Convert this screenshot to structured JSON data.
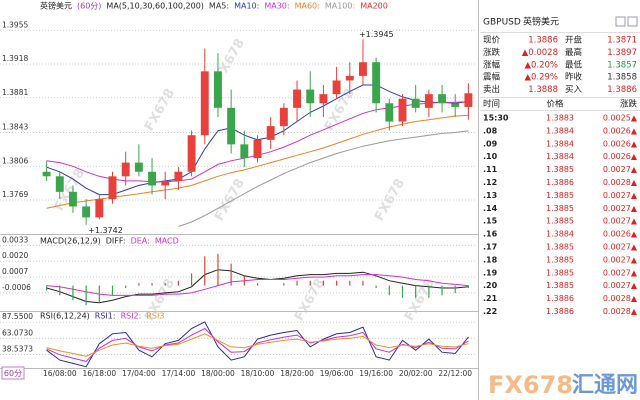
{
  "chart_data": [
    {
      "type": "candlestick",
      "title": "英镑美元",
      "period": "(60分)",
      "indicator": "MA(5,10,30,60,100,200)",
      "categories": [
        null,
        "16/08:00",
        null,
        null,
        "16/18:00",
        null,
        null,
        "17/04:00",
        null,
        null,
        "17/14:00",
        null,
        null,
        "18/00:00",
        null,
        null,
        "18/10:00",
        null,
        null,
        "18/20:00",
        null,
        null,
        "19/06:00",
        null,
        null,
        "19/16:00",
        null,
        null,
        "20/02:00",
        null,
        null,
        "22/12:00",
        null
      ],
      "open": [
        1.38,
        1.3795,
        1.3778,
        1.3762,
        1.375,
        1.377,
        1.3795,
        1.381,
        1.38,
        1.3785,
        1.379,
        1.38,
        1.384,
        1.391,
        1.387,
        1.383,
        1.3815,
        1.3835,
        1.385,
        1.387,
        1.389,
        1.3875,
        1.3885,
        1.39,
        1.3905,
        1.392,
        1.3875,
        1.3855,
        1.388,
        1.387,
        1.3885,
        1.3875,
        1.3871
      ],
      "high": [
        1.3812,
        1.38,
        1.3785,
        1.377,
        1.3775,
        1.38,
        1.3822,
        1.383,
        1.3815,
        1.38,
        1.3805,
        1.3845,
        1.3935,
        1.393,
        1.389,
        1.3845,
        1.384,
        1.386,
        1.3875,
        1.39,
        1.391,
        1.3895,
        1.3915,
        1.392,
        1.3945,
        1.3925,
        1.388,
        1.3885,
        1.3895,
        1.389,
        1.3895,
        1.3885,
        1.3897
      ],
      "low": [
        1.379,
        1.377,
        1.3755,
        1.3742,
        1.3748,
        1.3765,
        1.3785,
        1.3795,
        1.3775,
        1.377,
        1.378,
        1.3795,
        1.383,
        1.386,
        1.382,
        1.3805,
        1.381,
        1.3825,
        1.384,
        1.3855,
        1.386,
        1.386,
        1.388,
        1.3885,
        1.3895,
        1.3865,
        1.3845,
        1.385,
        1.3865,
        1.386,
        1.3865,
        1.386,
        1.3857
      ],
      "close": [
        1.3795,
        1.3778,
        1.3762,
        1.375,
        1.377,
        1.3795,
        1.381,
        1.38,
        1.3785,
        1.379,
        1.38,
        1.384,
        1.391,
        1.387,
        1.383,
        1.3815,
        1.3835,
        1.385,
        1.387,
        1.389,
        1.3875,
        1.3885,
        1.39,
        1.3905,
        1.392,
        1.3875,
        1.3855,
        1.388,
        1.387,
        1.3885,
        1.3875,
        1.3871,
        1.3886
      ],
      "up_color": "#e8413c",
      "down_color": "#3aa54a",
      "series": [
        {
          "name": "MA10:",
          "color": "#2a3fb0",
          "values": [
            1.3805,
            1.38,
            1.3792,
            1.3782,
            1.3775,
            1.3775,
            1.378,
            1.3785,
            1.3788,
            1.379,
            1.3792,
            1.38,
            1.3825,
            1.3845,
            1.3848,
            1.384,
            1.3835,
            1.3838,
            1.3845,
            1.3855,
            1.3865,
            1.3872,
            1.388,
            1.3888,
            1.3895,
            1.3895,
            1.3888,
            1.3882,
            1.3878,
            1.3876,
            1.3876,
            1.3875,
            1.3877
          ]
        },
        {
          "name": "MA30:",
          "color": "#d030d0",
          "values": [
            1.3812,
            1.381,
            1.3806,
            1.38,
            1.3795,
            1.3792,
            1.379,
            1.379,
            1.3789,
            1.3789,
            1.379,
            1.3792,
            1.38,
            1.3808,
            1.3812,
            1.3815,
            1.3818,
            1.3822,
            1.3827,
            1.3833,
            1.384,
            1.3846,
            1.3852,
            1.3858,
            1.3864,
            1.3868,
            1.387,
            1.3872,
            1.3874,
            1.3875,
            1.3876,
            1.3876,
            1.3877
          ]
        },
        {
          "name": "MA60:",
          "color": "#f08020",
          "values": [
            1.376,
            1.3763,
            1.3766,
            1.3768,
            1.377,
            1.3772,
            1.3774,
            1.3776,
            1.3778,
            1.378,
            1.3782,
            1.3785,
            1.379,
            1.3795,
            1.3799,
            1.3802,
            1.3806,
            1.381,
            1.3814,
            1.3818,
            1.3822,
            1.3826,
            1.3831,
            1.3836,
            1.3841,
            1.3845,
            1.3849,
            1.3852,
            1.3855,
            1.3857,
            1.3859,
            1.3861,
            1.3862
          ]
        },
        {
          "name": "MA100:",
          "color": "#999999",
          "values": [
            null,
            null,
            null,
            null,
            null,
            null,
            null,
            null,
            null,
            null,
            1.374,
            1.3745,
            1.3752,
            1.376,
            1.3768,
            1.3776,
            1.3784,
            1.3791,
            1.3798,
            1.3804,
            1.381,
            1.3815,
            1.382,
            1.3824,
            1.3828,
            1.3831,
            1.3834,
            1.3836,
            1.3838,
            1.384,
            1.3842,
            1.3843,
            1.3845
          ]
        }
      ],
      "legend_extra": [
        {
          "name": "MA5:",
          "color": "#333333"
        },
        {
          "name": "MA200",
          "color": "#e03030"
        }
      ],
      "annotations": [
        "+1.3945",
        "+1.3742"
      ],
      "ylim": [
        1.3734,
        1.3975
      ],
      "yticks": [
        1.3955,
        1.3918,
        1.3881,
        1.3843,
        1.3806,
        1.3769
      ],
      "grid": true
    },
    {
      "type": "macd",
      "title": "MACD(26,12,9)",
      "series": [
        {
          "name": "DIFF:",
          "color": "#222222",
          "values": [
            -0.0002,
            -0.0005,
            -0.0009,
            -0.0013,
            -0.0014,
            -0.0012,
            -0.0009,
            -0.0007,
            -0.0007,
            -0.0006,
            -0.0005,
            -0.0001,
            0.0009,
            0.0013,
            0.0012,
            0.0008,
            0.0006,
            0.0005,
            0.0006,
            0.0008,
            0.0009,
            0.0009,
            0.001,
            0.001,
            0.0011,
            0.0008,
            0.0004,
            0.0002,
            0.0,
            -0.0001,
            -0.0002,
            -0.0002,
            -0.0001
          ]
        },
        {
          "name": "DEA:",
          "color": "#d030d0",
          "values": [
            0.0,
            -0.0001,
            -0.0003,
            -0.0005,
            -0.0007,
            -0.0008,
            -0.0008,
            -0.0008,
            -0.0008,
            -0.0007,
            -0.0007,
            -0.0006,
            -0.0003,
            0.0,
            0.0003,
            0.0004,
            0.0005,
            0.0005,
            0.0005,
            0.0006,
            0.0007,
            0.0007,
            0.0008,
            0.0008,
            0.0009,
            0.0009,
            0.0008,
            0.0007,
            0.0005,
            0.0004,
            0.0002,
            0.0001,
            0.0
          ]
        },
        {
          "name": "MACD",
          "color": "#d030d0",
          "bars": true,
          "up_color": "#e8413c",
          "down_color": "#3aa54a",
          "values": [
            -0.0004,
            -0.0008,
            -0.0012,
            -0.0016,
            -0.0014,
            -0.0008,
            -0.0002,
            0.0002,
            0.0002,
            0.0002,
            0.0004,
            0.001,
            0.0024,
            0.0026,
            0.0018,
            0.0008,
            0.0002,
            0.0,
            0.0002,
            0.0004,
            0.0004,
            0.0004,
            0.0004,
            0.0004,
            0.0004,
            -0.0002,
            -0.0008,
            -0.001,
            -0.001,
            -0.001,
            -0.0008,
            -0.0006,
            -0.0002
          ]
        }
      ],
      "ylim": [
        -0.002,
        0.0039
      ],
      "yticks": [
        0.0033,
        {
          "value": 0.002,
          "label": "0.0020"
        },
        0.0007,
        -0.0006
      ],
      "grid": true
    },
    {
      "type": "rsi",
      "title": "RSI(6,12,24)",
      "series": [
        {
          "name": "RSI1:",
          "color": "#2a2aa0",
          "values": [
            45,
            30,
            25,
            20,
            55,
            70,
            72,
            45,
            35,
            55,
            60,
            78,
            88,
            50,
            30,
            35,
            62,
            68,
            72,
            75,
            50,
            62,
            70,
            72,
            80,
            35,
            30,
            60,
            45,
            62,
            42,
            40,
            65
          ]
        },
        {
          "name": "RSI2:",
          "color": "#d030d0",
          "values": [
            47,
            38,
            33,
            28,
            48,
            60,
            63,
            50,
            44,
            53,
            56,
            68,
            78,
            58,
            42,
            43,
            56,
            61,
            65,
            68,
            56,
            60,
            65,
            67,
            72,
            47,
            42,
            54,
            49,
            57,
            48,
            47,
            59
          ]
        },
        {
          "name": "RSI3",
          "color": "#f09020",
          "values": [
            49,
            44,
            40,
            36,
            45,
            53,
            56,
            51,
            48,
            52,
            54,
            62,
            70,
            60,
            50,
            49,
            54,
            57,
            60,
            62,
            57,
            59,
            62,
            63,
            66,
            53,
            49,
            53,
            51,
            55,
            51,
            50,
            55
          ]
        }
      ],
      "ylim": [
        18,
        94
      ],
      "yticks": [
        {
          "value": 87.55,
          "label": "87.5500"
        },
        {
          "value": 63.073,
          "label": "63.0730"
        },
        38.5373
      ],
      "grid": true
    }
  ],
  "period_button": "60分",
  "quote_panel": {
    "symbol": "GBPUSD",
    "name": "英镑美元",
    "rows": [
      [
        "现价",
        "1.3886",
        "开盘",
        "1.3871"
      ],
      [
        "涨跌",
        "▲0.0028",
        "最高",
        "1.3897"
      ],
      [
        "涨幅",
        "▲0.20%",
        "最低",
        "1.3857"
      ],
      [
        "震幅",
        "▲0.29%",
        "昨收",
        "1.3858"
      ],
      [
        "卖出",
        "1.3888",
        "买入",
        "1.3886"
      ]
    ],
    "tick_header": [
      "时间",
      "价格",
      "涨跌"
    ],
    "ticks": [
      [
        "15:30",
        "1.3883",
        "0.0025▲"
      ],
      [
        ".08",
        "1.3884",
        "0.0026▲"
      ],
      [
        ".09",
        "1.3884",
        "0.0026▲"
      ],
      [
        ".10",
        "1.3884",
        "0.0026▲"
      ],
      [
        ".11",
        "1.3885",
        "0.0027▲"
      ],
      [
        ".12",
        "1.3886",
        "0.0028▲"
      ],
      [
        ".13",
        "1.3885",
        "0.0027▲"
      ],
      [
        ".14",
        "1.3885",
        "0.0027▲"
      ],
      [
        ".15",
        "1.3885",
        "0.0027▲"
      ],
      [
        ".16",
        "1.3884",
        "0.0026▲"
      ],
      [
        ".17",
        "1.3885",
        "0.0027▲"
      ],
      [
        ".18",
        "1.3885",
        "0.0027▲"
      ],
      [
        ".19",
        "1.3885",
        "0.0027▲"
      ],
      [
        ".20",
        "1.3885",
        "0.0027▲"
      ],
      [
        ".21",
        "1.3886",
        "0.0028▲"
      ],
      [
        ".22",
        "1.3886",
        "0.0028▲"
      ]
    ]
  },
  "watermark": "FX678",
  "logo": [
    "FX678",
    "汇通网"
  ]
}
